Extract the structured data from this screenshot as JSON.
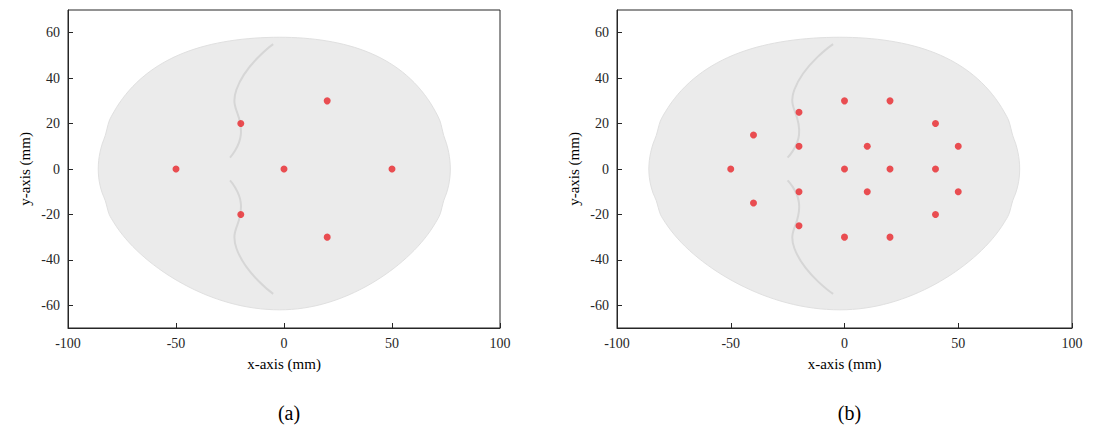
{
  "chart_data": [
    {
      "type": "scatter",
      "title": "(a)",
      "x_label": "x-axis (mm)",
      "y_label": "y-axis (mm)",
      "color": "#e8262a",
      "marker": "circle",
      "x": [
        -50,
        -20,
        -20,
        0,
        20,
        20,
        50
      ],
      "values": [
        0,
        20,
        -20,
        0,
        30,
        -30,
        0
      ],
      "xlim": [
        -100,
        100
      ],
      "xticks": [
        -100,
        -50,
        0,
        50,
        100
      ],
      "ylim": [
        -70,
        70
      ],
      "yticks": [
        -60,
        -40,
        -20,
        0,
        20,
        40,
        60
      ],
      "grid": false
    },
    {
      "type": "scatter",
      "title": "(b)",
      "x_label": "x-axis (mm)",
      "y_label": "y-axis (mm)",
      "color": "#e8262a",
      "marker": "circle",
      "x": [
        -50,
        -40,
        -40,
        -20,
        -20,
        -20,
        -20,
        0,
        0,
        0,
        10,
        10,
        20,
        20,
        20,
        40,
        40,
        40,
        50,
        50
      ],
      "values": [
        0,
        15,
        -15,
        25,
        10,
        -10,
        -25,
        30,
        0,
        -30,
        10,
        -10,
        30,
        0,
        -30,
        20,
        0,
        -20,
        10,
        -10
      ],
      "xlim": [
        -100,
        100
      ],
      "xticks": [
        -100,
        -50,
        0,
        50,
        100
      ],
      "ylim": [
        -70,
        70
      ],
      "yticks": [
        -60,
        -40,
        -20,
        0,
        20,
        40,
        60
      ],
      "grid": false
    }
  ]
}
